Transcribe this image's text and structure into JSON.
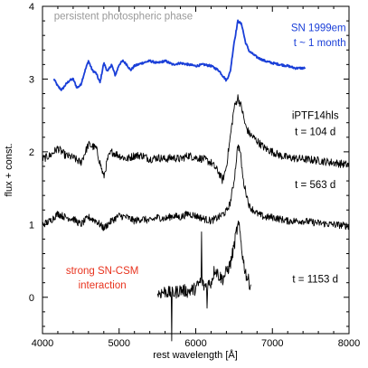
{
  "chart_data": {
    "type": "line",
    "xlabel": "rest wavelength [Å]",
    "ylabel": "flux + const.",
    "xlim": [
      4000,
      8000
    ],
    "ylim": [
      -0.5,
      4
    ],
    "x_ticks": [
      4000,
      5000,
      6000,
      7000,
      8000
    ],
    "x_tick_labels": [
      "4000",
      "5000",
      "6000",
      "7000",
      "8000"
    ],
    "y_ticks": [
      0,
      1,
      2,
      3,
      4
    ],
    "y_tick_labels": [
      "0",
      "1",
      "2",
      "3",
      "4"
    ],
    "grid": false,
    "legend": "none",
    "series": [
      {
        "name": "SN 1999em",
        "color": "#1a3fd8",
        "noise": 0.015,
        "points": [
          [
            4150,
            3.0
          ],
          [
            4200,
            2.9
          ],
          [
            4250,
            2.85
          ],
          [
            4300,
            2.92
          ],
          [
            4350,
            2.98
          ],
          [
            4400,
            3.0
          ],
          [
            4450,
            2.88
          ],
          [
            4500,
            2.92
          ],
          [
            4550,
            3.1
          ],
          [
            4600,
            3.25
          ],
          [
            4650,
            3.12
          ],
          [
            4700,
            3.08
          ],
          [
            4750,
            2.95
          ],
          [
            4800,
            3.22
          ],
          [
            4850,
            3.1
          ],
          [
            4900,
            3.2
          ],
          [
            4950,
            3.05
          ],
          [
            5000,
            3.2
          ],
          [
            5050,
            3.25
          ],
          [
            5100,
            3.2
          ],
          [
            5150,
            3.12
          ],
          [
            5200,
            3.18
          ],
          [
            5300,
            3.22
          ],
          [
            5400,
            3.25
          ],
          [
            5500,
            3.22
          ],
          [
            5600,
            3.25
          ],
          [
            5700,
            3.2
          ],
          [
            5800,
            3.22
          ],
          [
            5900,
            3.2
          ],
          [
            6000,
            3.18
          ],
          [
            6100,
            3.2
          ],
          [
            6200,
            3.18
          ],
          [
            6300,
            3.12
          ],
          [
            6350,
            3.05
          ],
          [
            6400,
            2.98
          ],
          [
            6450,
            3.1
          ],
          [
            6500,
            3.5
          ],
          [
            6550,
            3.8
          ],
          [
            6600,
            3.75
          ],
          [
            6650,
            3.5
          ],
          [
            6700,
            3.38
          ],
          [
            6800,
            3.3
          ],
          [
            6900,
            3.25
          ],
          [
            7000,
            3.22
          ],
          [
            7100,
            3.2
          ],
          [
            7200,
            3.18
          ],
          [
            7300,
            3.15
          ],
          [
            7430,
            3.15
          ]
        ]
      },
      {
        "name": "iPTF14hls t = 104 d",
        "color": "#000000",
        "noise": 0.055,
        "points": [
          [
            4000,
            1.9
          ],
          [
            4100,
            1.95
          ],
          [
            4200,
            2.05
          ],
          [
            4300,
            1.95
          ],
          [
            4400,
            1.92
          ],
          [
            4500,
            1.85
          ],
          [
            4600,
            2.1
          ],
          [
            4700,
            2.05
          ],
          [
            4800,
            1.65
          ],
          [
            4850,
            1.9
          ],
          [
            4900,
            2.0
          ],
          [
            5000,
            1.95
          ],
          [
            5100,
            1.9
          ],
          [
            5200,
            1.95
          ],
          [
            5300,
            1.95
          ],
          [
            5400,
            1.9
          ],
          [
            5500,
            1.92
          ],
          [
            5600,
            1.9
          ],
          [
            5700,
            1.92
          ],
          [
            5800,
            1.9
          ],
          [
            5900,
            1.95
          ],
          [
            6000,
            1.92
          ],
          [
            6100,
            1.9
          ],
          [
            6200,
            1.85
          ],
          [
            6300,
            1.72
          ],
          [
            6350,
            1.6
          ],
          [
            6400,
            1.8
          ],
          [
            6450,
            2.2
          ],
          [
            6500,
            2.6
          ],
          [
            6550,
            2.75
          ],
          [
            6600,
            2.6
          ],
          [
            6650,
            2.35
          ],
          [
            6700,
            2.25
          ],
          [
            6800,
            2.15
          ],
          [
            6900,
            2.05
          ],
          [
            7000,
            2.0
          ],
          [
            7100,
            1.95
          ],
          [
            7200,
            1.92
          ],
          [
            7400,
            1.9
          ],
          [
            7600,
            1.88
          ],
          [
            7800,
            1.85
          ],
          [
            8000,
            1.82
          ]
        ]
      },
      {
        "name": "iPTF14hls t = 563 d",
        "color": "#000000",
        "noise": 0.05,
        "points": [
          [
            4000,
            1.0
          ],
          [
            4100,
            1.05
          ],
          [
            4200,
            1.15
          ],
          [
            4300,
            1.1
          ],
          [
            4400,
            1.08
          ],
          [
            4500,
            1.0
          ],
          [
            4600,
            1.1
          ],
          [
            4700,
            1.05
          ],
          [
            4800,
            0.95
          ],
          [
            4900,
            1.05
          ],
          [
            5000,
            1.12
          ],
          [
            5100,
            1.1
          ],
          [
            5200,
            1.05
          ],
          [
            5300,
            1.08
          ],
          [
            5400,
            1.05
          ],
          [
            5500,
            1.1
          ],
          [
            5600,
            1.08
          ],
          [
            5700,
            1.12
          ],
          [
            5800,
            1.1
          ],
          [
            5900,
            1.15
          ],
          [
            6000,
            1.12
          ],
          [
            6100,
            1.08
          ],
          [
            6200,
            1.05
          ],
          [
            6300,
            1.1
          ],
          [
            6400,
            1.18
          ],
          [
            6450,
            1.3
          ],
          [
            6500,
            1.6
          ],
          [
            6550,
            2.1
          ],
          [
            6580,
            2.0
          ],
          [
            6620,
            1.6
          ],
          [
            6700,
            1.25
          ],
          [
            6800,
            1.15
          ],
          [
            6900,
            1.1
          ],
          [
            7000,
            1.1
          ],
          [
            7200,
            1.05
          ],
          [
            7400,
            1.05
          ],
          [
            7600,
            1.02
          ],
          [
            7800,
            1.0
          ],
          [
            8000,
            0.98
          ]
        ]
      },
      {
        "name": "iPTF14hls t = 1153 d",
        "color": "#000000",
        "noise": 0.09,
        "points": [
          [
            5500,
            0.05
          ],
          [
            5600,
            0.08
          ],
          [
            5700,
            0.05
          ],
          [
            5800,
            0.1
          ],
          [
            5900,
            0.08
          ],
          [
            6000,
            0.12
          ],
          [
            6050,
            0.2
          ],
          [
            6080,
            0.25
          ],
          [
            6100,
            0.15
          ],
          [
            6200,
            0.2
          ],
          [
            6250,
            0.4
          ],
          [
            6300,
            0.3
          ],
          [
            6350,
            0.25
          ],
          [
            6400,
            0.35
          ],
          [
            6450,
            0.45
          ],
          [
            6500,
            0.7
          ],
          [
            6530,
            0.9
          ],
          [
            6560,
            1.0
          ],
          [
            6580,
            0.85
          ],
          [
            6620,
            0.5
          ],
          [
            6660,
            0.3
          ],
          [
            6700,
            0.2
          ],
          [
            6720,
            0.15
          ]
        ],
        "spikes": [
          [
            6075,
            0.9
          ],
          [
            5685,
            -0.6
          ],
          [
            6150,
            -0.15
          ]
        ]
      }
    ],
    "annotations": [
      {
        "id": "phase",
        "text": "persistent photospheric phase",
        "color": "#999999",
        "x": 4150,
        "y": 3.82,
        "anchor": "start"
      },
      {
        "id": "sn1999em-name",
        "text": "SN 1999em",
        "color": "#1a3fd8",
        "x": 7960,
        "y": 3.66,
        "anchor": "end"
      },
      {
        "id": "sn1999em-time",
        "text": "t ~ 1 month",
        "color": "#1a3fd8",
        "x": 7960,
        "y": 3.45,
        "anchor": "end"
      },
      {
        "id": "iptf-name",
        "text": "iPTF14hls",
        "color": "#000000",
        "x": 7560,
        "y": 2.45,
        "anchor": "middle"
      },
      {
        "id": "t104",
        "text": "t = 104 d",
        "color": "#000000",
        "x": 7560,
        "y": 2.23,
        "anchor": "middle"
      },
      {
        "id": "t563",
        "text": "t = 563 d",
        "color": "#000000",
        "x": 7560,
        "y": 1.5,
        "anchor": "middle"
      },
      {
        "id": "t1153",
        "text": "t = 1153 d",
        "color": "#000000",
        "x": 7560,
        "y": 0.2,
        "anchor": "middle"
      },
      {
        "id": "csm-1",
        "text": "strong SN-CSM",
        "color": "#e8331e",
        "x": 4780,
        "y": 0.32,
        "anchor": "middle"
      },
      {
        "id": "csm-2",
        "text": "interaction",
        "color": "#e8331e",
        "x": 4780,
        "y": 0.12,
        "anchor": "middle"
      }
    ]
  }
}
